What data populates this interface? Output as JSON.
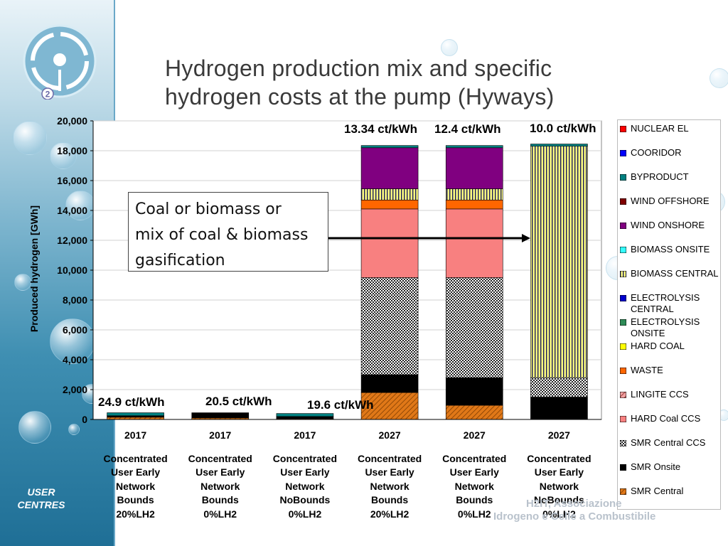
{
  "title_line1": "Hydrogen production mix and specific",
  "title_line2": "hydrogen costs at the pump (Hyways)",
  "logo_badge": "2",
  "sidebar_label": "USER CENTRES",
  "callout": {
    "line1": "Coal or biomass or",
    "line2": "mix of coal & biomass",
    "line3": "gasification"
  },
  "watermark": {
    "line1": "H2IT, Associazione",
    "line2": "Idrogeno e Celle a Combustibile"
  },
  "chart_data": {
    "type": "bar",
    "stacked": true,
    "ylabel": "Produced hydrogen [GWh]",
    "ylim": [
      0,
      20000
    ],
    "yticks": [
      "0",
      "2,000",
      "4,000",
      "6,000",
      "8,000",
      "10,000",
      "12,000",
      "14,000",
      "16,000",
      "18,000",
      "20,000"
    ],
    "grid": true,
    "legend_position": "right",
    "categories": [
      {
        "year": "2017",
        "line1": "Concentrated",
        "line2": "User Early",
        "line3": "Network",
        "line4": "Bounds",
        "line5": "20%LH2"
      },
      {
        "year": "2017",
        "line1": "Concentrated",
        "line2": "User Early",
        "line3": "Network",
        "line4": "Bounds",
        "line5": "0%LH2"
      },
      {
        "year": "2017",
        "line1": "Concentrated",
        "line2": "User Early",
        "line3": "Network",
        "line4": "NoBounds",
        "line5": "0%LH2"
      },
      {
        "year": "2027",
        "line1": "Concentrated",
        "line2": "User Early",
        "line3": "Network",
        "line4": "Bounds",
        "line5": "20%LH2"
      },
      {
        "year": "2027",
        "line1": "Concentrated",
        "line2": "User Early",
        "line3": "Network",
        "line4": "Bounds",
        "line5": "0%LH2"
      },
      {
        "year": "2027",
        "line1": "Concentrated",
        "line2": "User Early",
        "line3": "Network",
        "line4": "NoBounds",
        "line5": "0%LH2"
      }
    ],
    "cost_labels": [
      "24.9 ct/kWh",
      "20.5 ct/kWh",
      "19.6 ct/kWh",
      "13.34 ct/kWh",
      "12.4 ct/kWh",
      "10.0 ct/kWh"
    ],
    "series": [
      {
        "name": "SMR Central",
        "color": "#e07818",
        "pattern": "hatch",
        "values": [
          150,
          100,
          50,
          1800,
          950,
          0
        ]
      },
      {
        "name": "SMR Onsite",
        "color": "#000000",
        "pattern": "solid",
        "values": [
          100,
          350,
          150,
          1200,
          1850,
          1500
        ]
      },
      {
        "name": "SMR Central CCS",
        "color": "#333333",
        "pattern": "checker",
        "values": [
          0,
          0,
          0,
          6500,
          6700,
          1300
        ]
      },
      {
        "name": "HARD Coal CCS",
        "color": "#f88080",
        "pattern": "solid",
        "values": [
          0,
          0,
          0,
          4600,
          4600,
          0
        ]
      },
      {
        "name": "LINGITE CCS",
        "color": "#c04040",
        "pattern": "hatch",
        "values": [
          0,
          0,
          0,
          0,
          0,
          0
        ]
      },
      {
        "name": "WASTE",
        "color": "#ff6600",
        "pattern": "solid",
        "values": [
          0,
          0,
          0,
          600,
          600,
          0
        ]
      },
      {
        "name": "HARD COAL",
        "color": "#ffff00",
        "pattern": "solid",
        "values": [
          0,
          0,
          0,
          0,
          0,
          0
        ]
      },
      {
        "name": "ELECTROLYSIS ONSITE",
        "color": "#2e8b57",
        "pattern": "solid",
        "values": [
          0,
          0,
          0,
          0,
          0,
          0
        ]
      },
      {
        "name": "ELECTROLYSIS CENTRAL",
        "color": "#0000cc",
        "pattern": "solid",
        "values": [
          0,
          0,
          0,
          0,
          0,
          0
        ]
      },
      {
        "name": "BIOMASS CENTRAL",
        "color": "#ffff80",
        "pattern": "vstripe",
        "values": [
          0,
          0,
          0,
          750,
          750,
          15500
        ]
      },
      {
        "name": "BIOMASS ONSITE",
        "color": "#33ffff",
        "pattern": "solid",
        "values": [
          0,
          0,
          0,
          0,
          0,
          0
        ]
      },
      {
        "name": "WIND ONSHORE",
        "color": "#800080",
        "pattern": "solid",
        "values": [
          0,
          0,
          0,
          2750,
          2750,
          0
        ]
      },
      {
        "name": "WIND OFFSHORE",
        "color": "#800000",
        "pattern": "solid",
        "values": [
          0,
          0,
          0,
          0,
          0,
          0
        ]
      },
      {
        "name": "BYPRODUCT",
        "color": "#008080",
        "pattern": "solid",
        "values": [
          200,
          0,
          200,
          150,
          150,
          150
        ]
      },
      {
        "name": "COORIDOR",
        "color": "#0000ff",
        "pattern": "solid",
        "values": [
          0,
          0,
          0,
          0,
          0,
          0
        ]
      },
      {
        "name": "NUCLEAR EL",
        "color": "#ff0000",
        "pattern": "solid",
        "values": [
          0,
          0,
          0,
          0,
          0,
          0
        ]
      }
    ],
    "legend_order": [
      "NUCLEAR EL",
      "COORIDOR",
      "BYPRODUCT",
      "WIND OFFSHORE",
      "WIND ONSHORE",
      "BIOMASS ONSITE",
      "BIOMASS CENTRAL",
      "ELECTROLYSIS CENTRAL",
      "ELECTROLYSIS ONSITE",
      "HARD COAL",
      "WASTE",
      "LINGITE CCS",
      "HARD Coal CCS",
      "SMR Central CCS",
      "SMR Onsite",
      "SMR Central"
    ]
  }
}
